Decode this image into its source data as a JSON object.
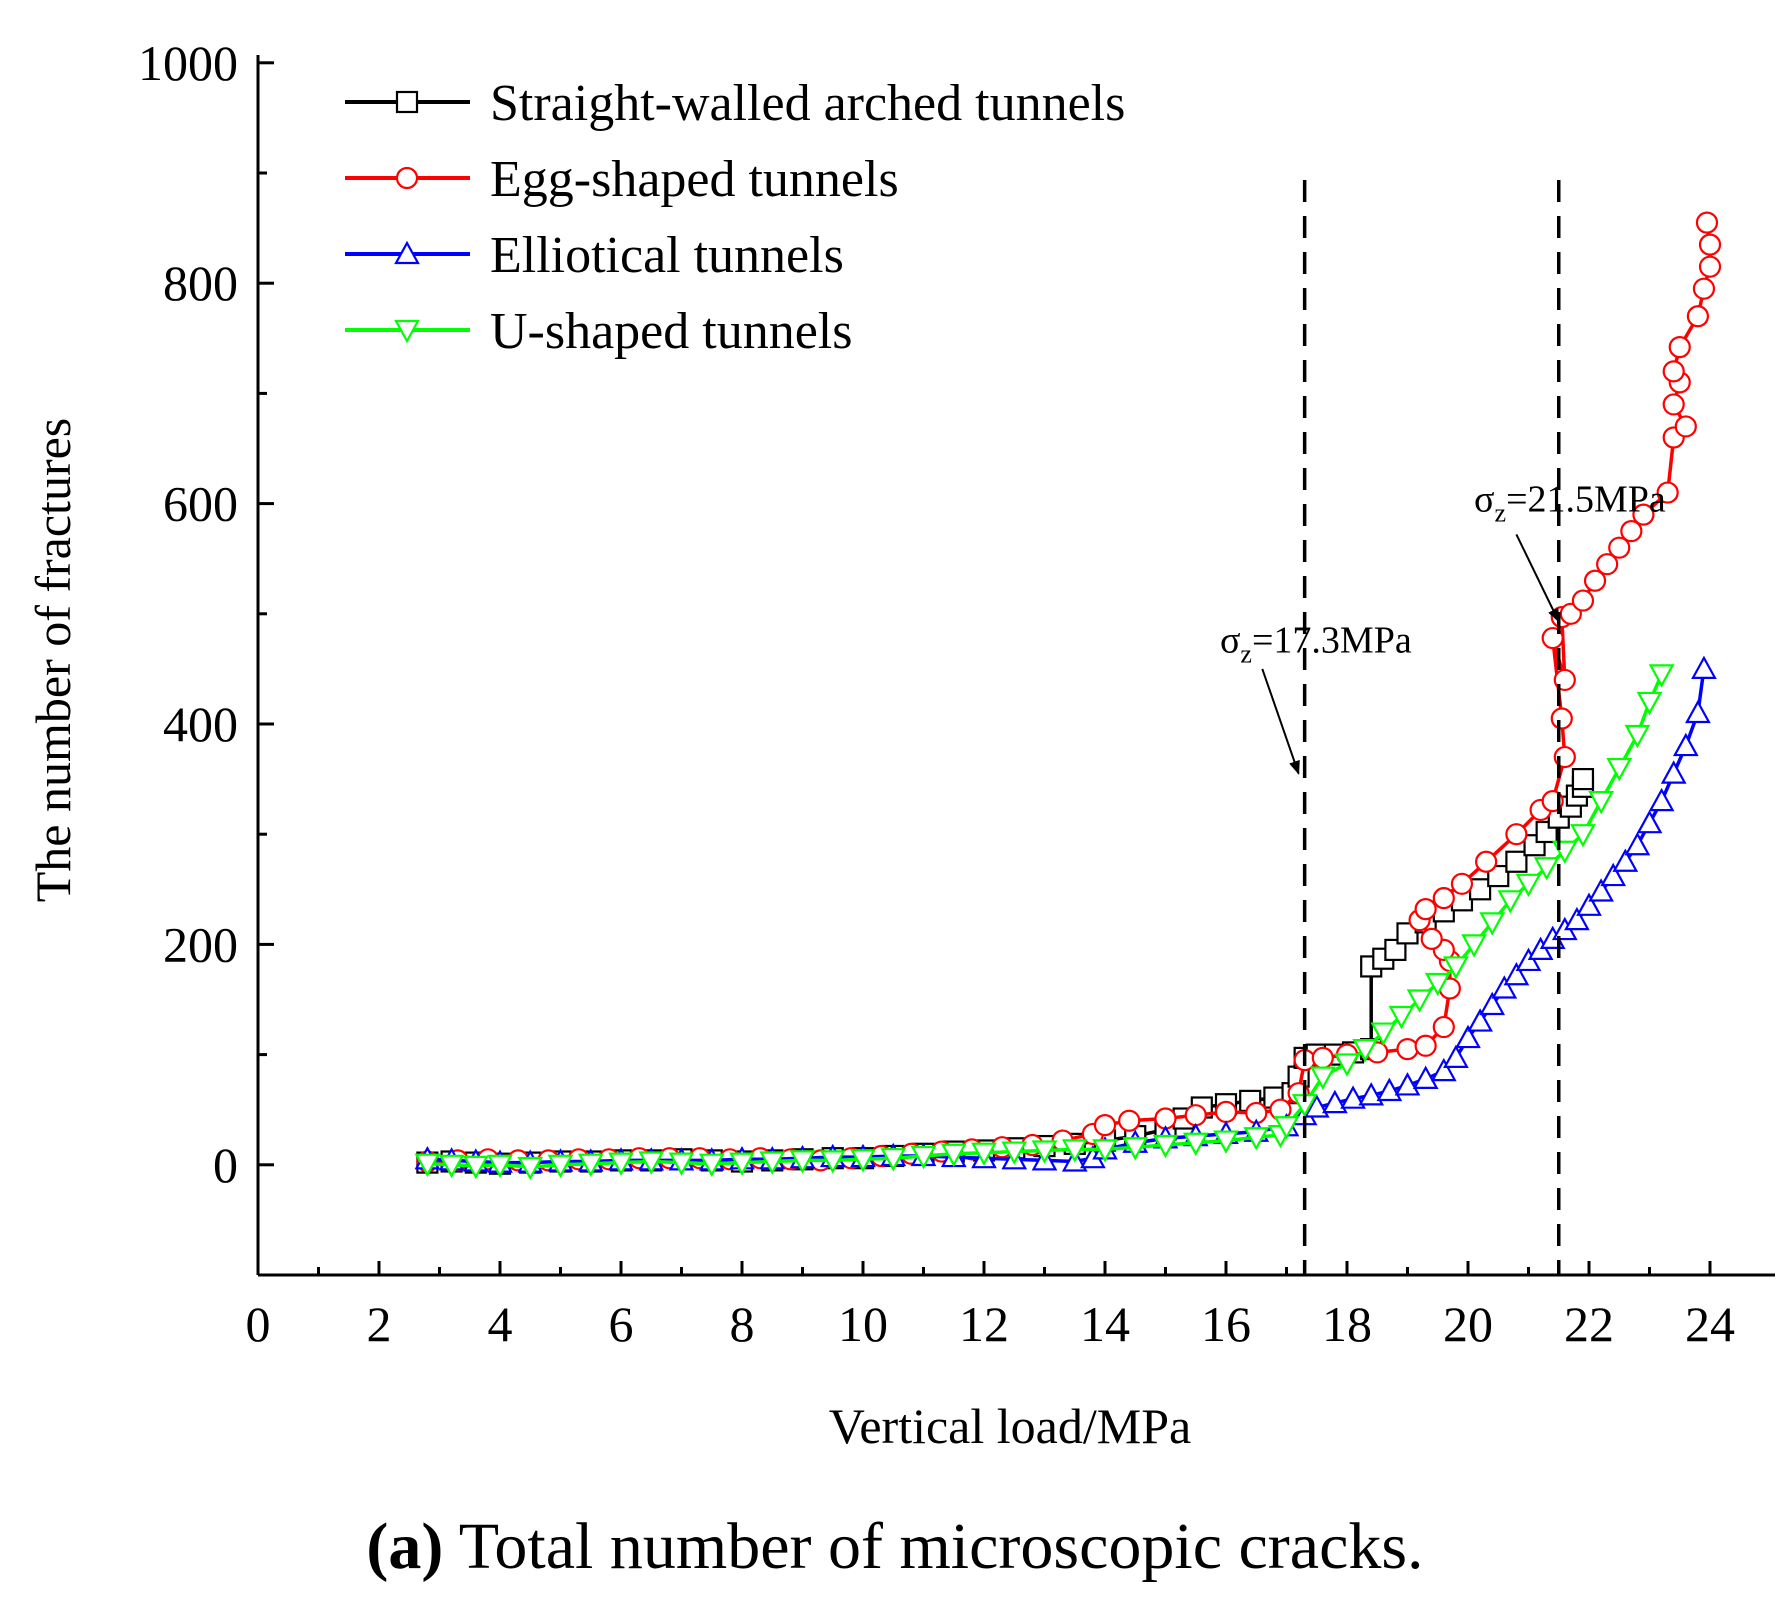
{
  "chart_data": {
    "type": "line",
    "xlabel": "Vertical load/MPa",
    "ylabel": "The number of fractures",
    "xlim": [
      0,
      25
    ],
    "ylim": [
      -100,
      1000
    ],
    "xticks": [
      0,
      2,
      4,
      6,
      8,
      10,
      12,
      14,
      16,
      18,
      20,
      22,
      24
    ],
    "xticks_minor": [
      1,
      3,
      5,
      7,
      9,
      11,
      13,
      15,
      17,
      19,
      21,
      23
    ],
    "yticks": [
      0,
      200,
      400,
      600,
      800,
      1000
    ],
    "yticks_minor": [
      -100,
      100,
      300,
      500,
      700,
      900
    ],
    "legend_position": "top-left",
    "caption_bold": "a",
    "caption_rest": " Total number of microscopic cracks.",
    "vlines": [
      {
        "x": 17.3,
        "label_main": "σ",
        "label_sub": "z",
        "label_rest": "=17.3MPa",
        "arrow_from": [
          16.6,
          450
        ],
        "arrow_to": [
          17.2,
          355
        ],
        "label_at": [
          15.9,
          465
        ]
      },
      {
        "x": 21.5,
        "label_main": "σ",
        "label_sub": "z",
        "label_rest": "=21.5MPa",
        "arrow_from": [
          20.8,
          572
        ],
        "arrow_to": [
          21.5,
          493
        ],
        "label_at": [
          20.1,
          593
        ]
      }
    ],
    "series": [
      {
        "name": "Straight-walled arched tunnels",
        "color": "#000000",
        "marker": "square",
        "x": [
          2.8,
          3.2,
          3.6,
          4.0,
          4.5,
          5.0,
          5.5,
          6.0,
          6.5,
          7.0,
          7.5,
          8.0,
          8.5,
          9.0,
          9.5,
          10.0,
          10.5,
          11.0,
          11.5,
          12.0,
          12.5,
          13.0,
          13.5,
          14.0,
          14.5,
          15.0,
          15.3,
          15.6,
          16.0,
          16.4,
          16.8,
          17.1,
          17.2,
          17.3,
          17.5,
          17.8,
          18.1,
          18.4,
          18.4,
          18.6,
          18.8,
          19.0,
          19.3,
          19.6,
          19.9,
          20.2,
          20.5,
          20.8,
          21.1,
          21.3,
          21.5,
          21.7,
          21.8,
          21.9,
          21.9
        ],
        "y": [
          2,
          3,
          2,
          1,
          2,
          3,
          3,
          4,
          4,
          5,
          4,
          3,
          4,
          5,
          6,
          6,
          8,
          10,
          12,
          13,
          15,
          17,
          19,
          22,
          26,
          32,
          42,
          52,
          55,
          58,
          61,
          65,
          80,
          97,
          100,
          100,
          102,
          105,
          180,
          187,
          195,
          210,
          220,
          230,
          240,
          250,
          262,
          275,
          290,
          302,
          315,
          325,
          335,
          343,
          350
        ]
      },
      {
        "name": "Egg-shaped tunnels",
        "color": "#ff0000",
        "marker": "circle",
        "x": [
          2.8,
          3.3,
          3.8,
          4.3,
          4.8,
          5.3,
          5.8,
          6.3,
          6.8,
          7.3,
          7.8,
          8.3,
          8.8,
          9.3,
          9.8,
          10.3,
          10.8,
          11.3,
          11.8,
          12.3,
          12.8,
          13.3,
          13.8,
          14.0,
          14.4,
          15.0,
          15.5,
          16.0,
          16.5,
          16.9,
          17.2,
          17.3,
          17.6,
          18.0,
          18.5,
          19.0,
          19.3,
          19.6,
          19.7,
          19.7,
          19.6,
          19.4,
          19.2,
          19.3,
          19.6,
          19.9,
          20.3,
          20.8,
          21.2,
          21.4,
          21.6,
          21.55,
          21.4,
          21.6,
          21.55,
          21.7,
          21.9,
          22.1,
          22.3,
          22.5,
          22.7,
          22.9,
          23.3,
          23.4,
          23.6,
          23.4,
          23.5,
          23.4,
          23.5,
          23.8,
          23.9,
          24.0,
          24.0,
          23.95
        ],
        "y": [
          3,
          4,
          5,
          4,
          4,
          5,
          5,
          6,
          6,
          6,
          5,
          6,
          5,
          4,
          6,
          8,
          10,
          12,
          14,
          16,
          18,
          22,
          28,
          36,
          40,
          42,
          45,
          48,
          47,
          50,
          65,
          95,
          97,
          100,
          102,
          105,
          108,
          125,
          160,
          185,
          195,
          205,
          222,
          232,
          242,
          255,
          275,
          300,
          322,
          330,
          370,
          405,
          478,
          440,
          497,
          500,
          512,
          530,
          545,
          560,
          575,
          590,
          610,
          660,
          670,
          690,
          710,
          720,
          742,
          770,
          795,
          815,
          835,
          855
        ]
      },
      {
        "name": "Elliotical tunnels",
        "color": "#0000ff",
        "marker": "triangle-up",
        "x": [
          2.8,
          3.2,
          3.6,
          4.0,
          4.5,
          5.0,
          5.5,
          6.0,
          6.5,
          7.0,
          7.5,
          8.0,
          8.5,
          9.0,
          9.5,
          10.0,
          10.5,
          11.0,
          11.5,
          12.0,
          12.5,
          13.0,
          13.5,
          13.8,
          14.0,
          14.5,
          15.0,
          15.5,
          16.0,
          16.5,
          17.0,
          17.3,
          17.5,
          17.8,
          18.1,
          18.4,
          18.7,
          19.0,
          19.3,
          19.6,
          19.8,
          20.0,
          20.2,
          20.4,
          20.6,
          20.8,
          21.0,
          21.2,
          21.4,
          21.6,
          21.8,
          22.0,
          22.2,
          22.4,
          22.6,
          22.8,
          23.0,
          23.2,
          23.4,
          23.6,
          23.8,
          23.9
        ],
        "y": [
          5,
          4,
          3,
          2,
          2,
          3,
          3,
          4,
          4,
          4,
          4,
          5,
          5,
          6,
          7,
          7,
          8,
          8,
          7,
          6,
          5,
          4,
          3,
          6,
          14,
          20,
          24,
          26,
          28,
          30,
          35,
          45,
          52,
          56,
          60,
          63,
          67,
          72,
          78,
          85,
          97,
          115,
          130,
          145,
          160,
          172,
          185,
          195,
          205,
          213,
          222,
          235,
          248,
          262,
          275,
          290,
          310,
          330,
          355,
          380,
          410,
          450
        ]
      },
      {
        "name": "U-shaped tunnels",
        "color": "#00ff00",
        "marker": "triangle-down",
        "x": [
          2.8,
          3.2,
          3.6,
          4.0,
          4.5,
          5.0,
          5.5,
          6.0,
          6.5,
          7.0,
          7.5,
          8.0,
          8.5,
          9.0,
          9.5,
          10.0,
          10.5,
          11.0,
          11.5,
          12.0,
          12.5,
          13.0,
          13.5,
          14.0,
          14.5,
          15.0,
          15.5,
          16.0,
          16.5,
          16.9,
          17.0,
          17.3,
          17.6,
          18.0,
          18.3,
          18.6,
          18.9,
          19.2,
          19.5,
          19.8,
          20.1,
          20.4,
          20.7,
          21.0,
          21.3,
          21.6,
          21.9,
          22.2,
          22.5,
          22.8,
          23.0,
          23.2
        ],
        "y": [
          1,
          0,
          -1,
          0,
          -2,
          0,
          1,
          2,
          3,
          2,
          1,
          2,
          3,
          4,
          4,
          5,
          6,
          8,
          10,
          11,
          12,
          13,
          14,
          14,
          16,
          18,
          20,
          22,
          25,
          27,
          35,
          55,
          80,
          92,
          105,
          120,
          135,
          150,
          165,
          180,
          200,
          220,
          240,
          255,
          270,
          285,
          300,
          330,
          360,
          390,
          420,
          445
        ]
      }
    ]
  }
}
